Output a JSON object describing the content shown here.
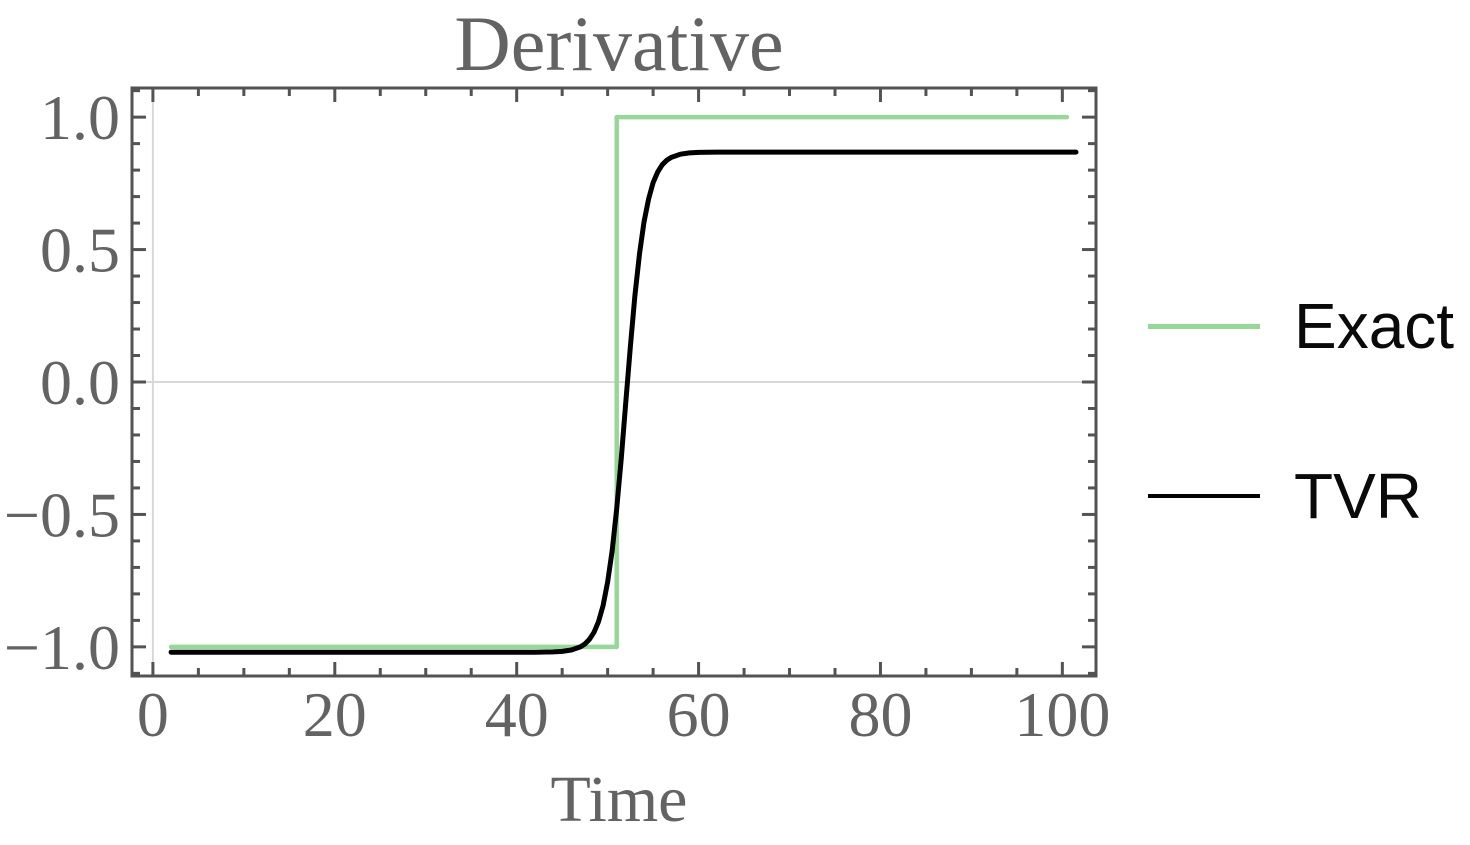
{
  "chart_data": {
    "type": "line",
    "title": "Derivative",
    "xlabel": "Time",
    "ylabel": "",
    "xlim": [
      -2.3,
      103.7
    ],
    "ylim": [
      -1.11,
      1.11
    ],
    "grid": "zero-lines-only",
    "gridlines": {
      "x": [
        0
      ],
      "y": [
        0
      ]
    },
    "xticks": {
      "major": [
        0,
        20,
        40,
        60,
        80,
        100
      ],
      "labels": [
        "0",
        "20",
        "40",
        "60",
        "80",
        "100"
      ],
      "minor_step": 5
    },
    "yticks": {
      "major": [
        -1.0,
        -0.5,
        0.0,
        0.5,
        1.0
      ],
      "labels": [
        "−1.0",
        "−0.5",
        "0.0",
        "0.5",
        "1.0"
      ],
      "minor_step": 0.1
    },
    "legend_position": "right-outside",
    "series": [
      {
        "name": "Exact",
        "color": "#97d797",
        "stroke_width": 4.5,
        "points": [
          [
            2,
            -1.0
          ],
          [
            51,
            -1.0
          ],
          [
            51,
            1.0
          ],
          [
            100.5,
            1.0
          ]
        ]
      },
      {
        "name": "TVR",
        "color": "#000000",
        "stroke_width": 5,
        "points": [
          [
            2,
            -1.02
          ],
          [
            10,
            -1.02
          ],
          [
            20,
            -1.02
          ],
          [
            30,
            -1.02
          ],
          [
            38,
            -1.02
          ],
          [
            42,
            -1.02
          ],
          [
            44,
            -1.019
          ],
          [
            45,
            -1.017
          ],
          [
            46,
            -1.012
          ],
          [
            47,
            -1.0
          ],
          [
            47.5,
            -0.989
          ],
          [
            48,
            -0.972
          ],
          [
            48.5,
            -0.945
          ],
          [
            49,
            -0.905
          ],
          [
            49.5,
            -0.844
          ],
          [
            50,
            -0.756
          ],
          [
            50.5,
            -0.636
          ],
          [
            51,
            -0.478
          ],
          [
            51.5,
            -0.287
          ],
          [
            52,
            -0.076
          ],
          [
            52.5,
            0.135
          ],
          [
            53,
            0.326
          ],
          [
            53.5,
            0.484
          ],
          [
            54,
            0.604
          ],
          [
            54.5,
            0.691
          ],
          [
            55,
            0.753
          ],
          [
            55.5,
            0.793
          ],
          [
            56,
            0.82
          ],
          [
            56.5,
            0.837
          ],
          [
            57,
            0.848
          ],
          [
            58,
            0.86
          ],
          [
            59,
            0.865
          ],
          [
            60,
            0.867
          ],
          [
            62,
            0.868
          ],
          [
            70,
            0.868
          ],
          [
            80,
            0.868
          ],
          [
            90,
            0.868
          ],
          [
            101.5,
            0.868
          ]
        ]
      }
    ],
    "colors": {
      "background": "#ffffff",
      "frame": "#535353",
      "labels": "#636363",
      "grid": "#d8d8d8",
      "legend_text": "#0a0a0a"
    }
  }
}
